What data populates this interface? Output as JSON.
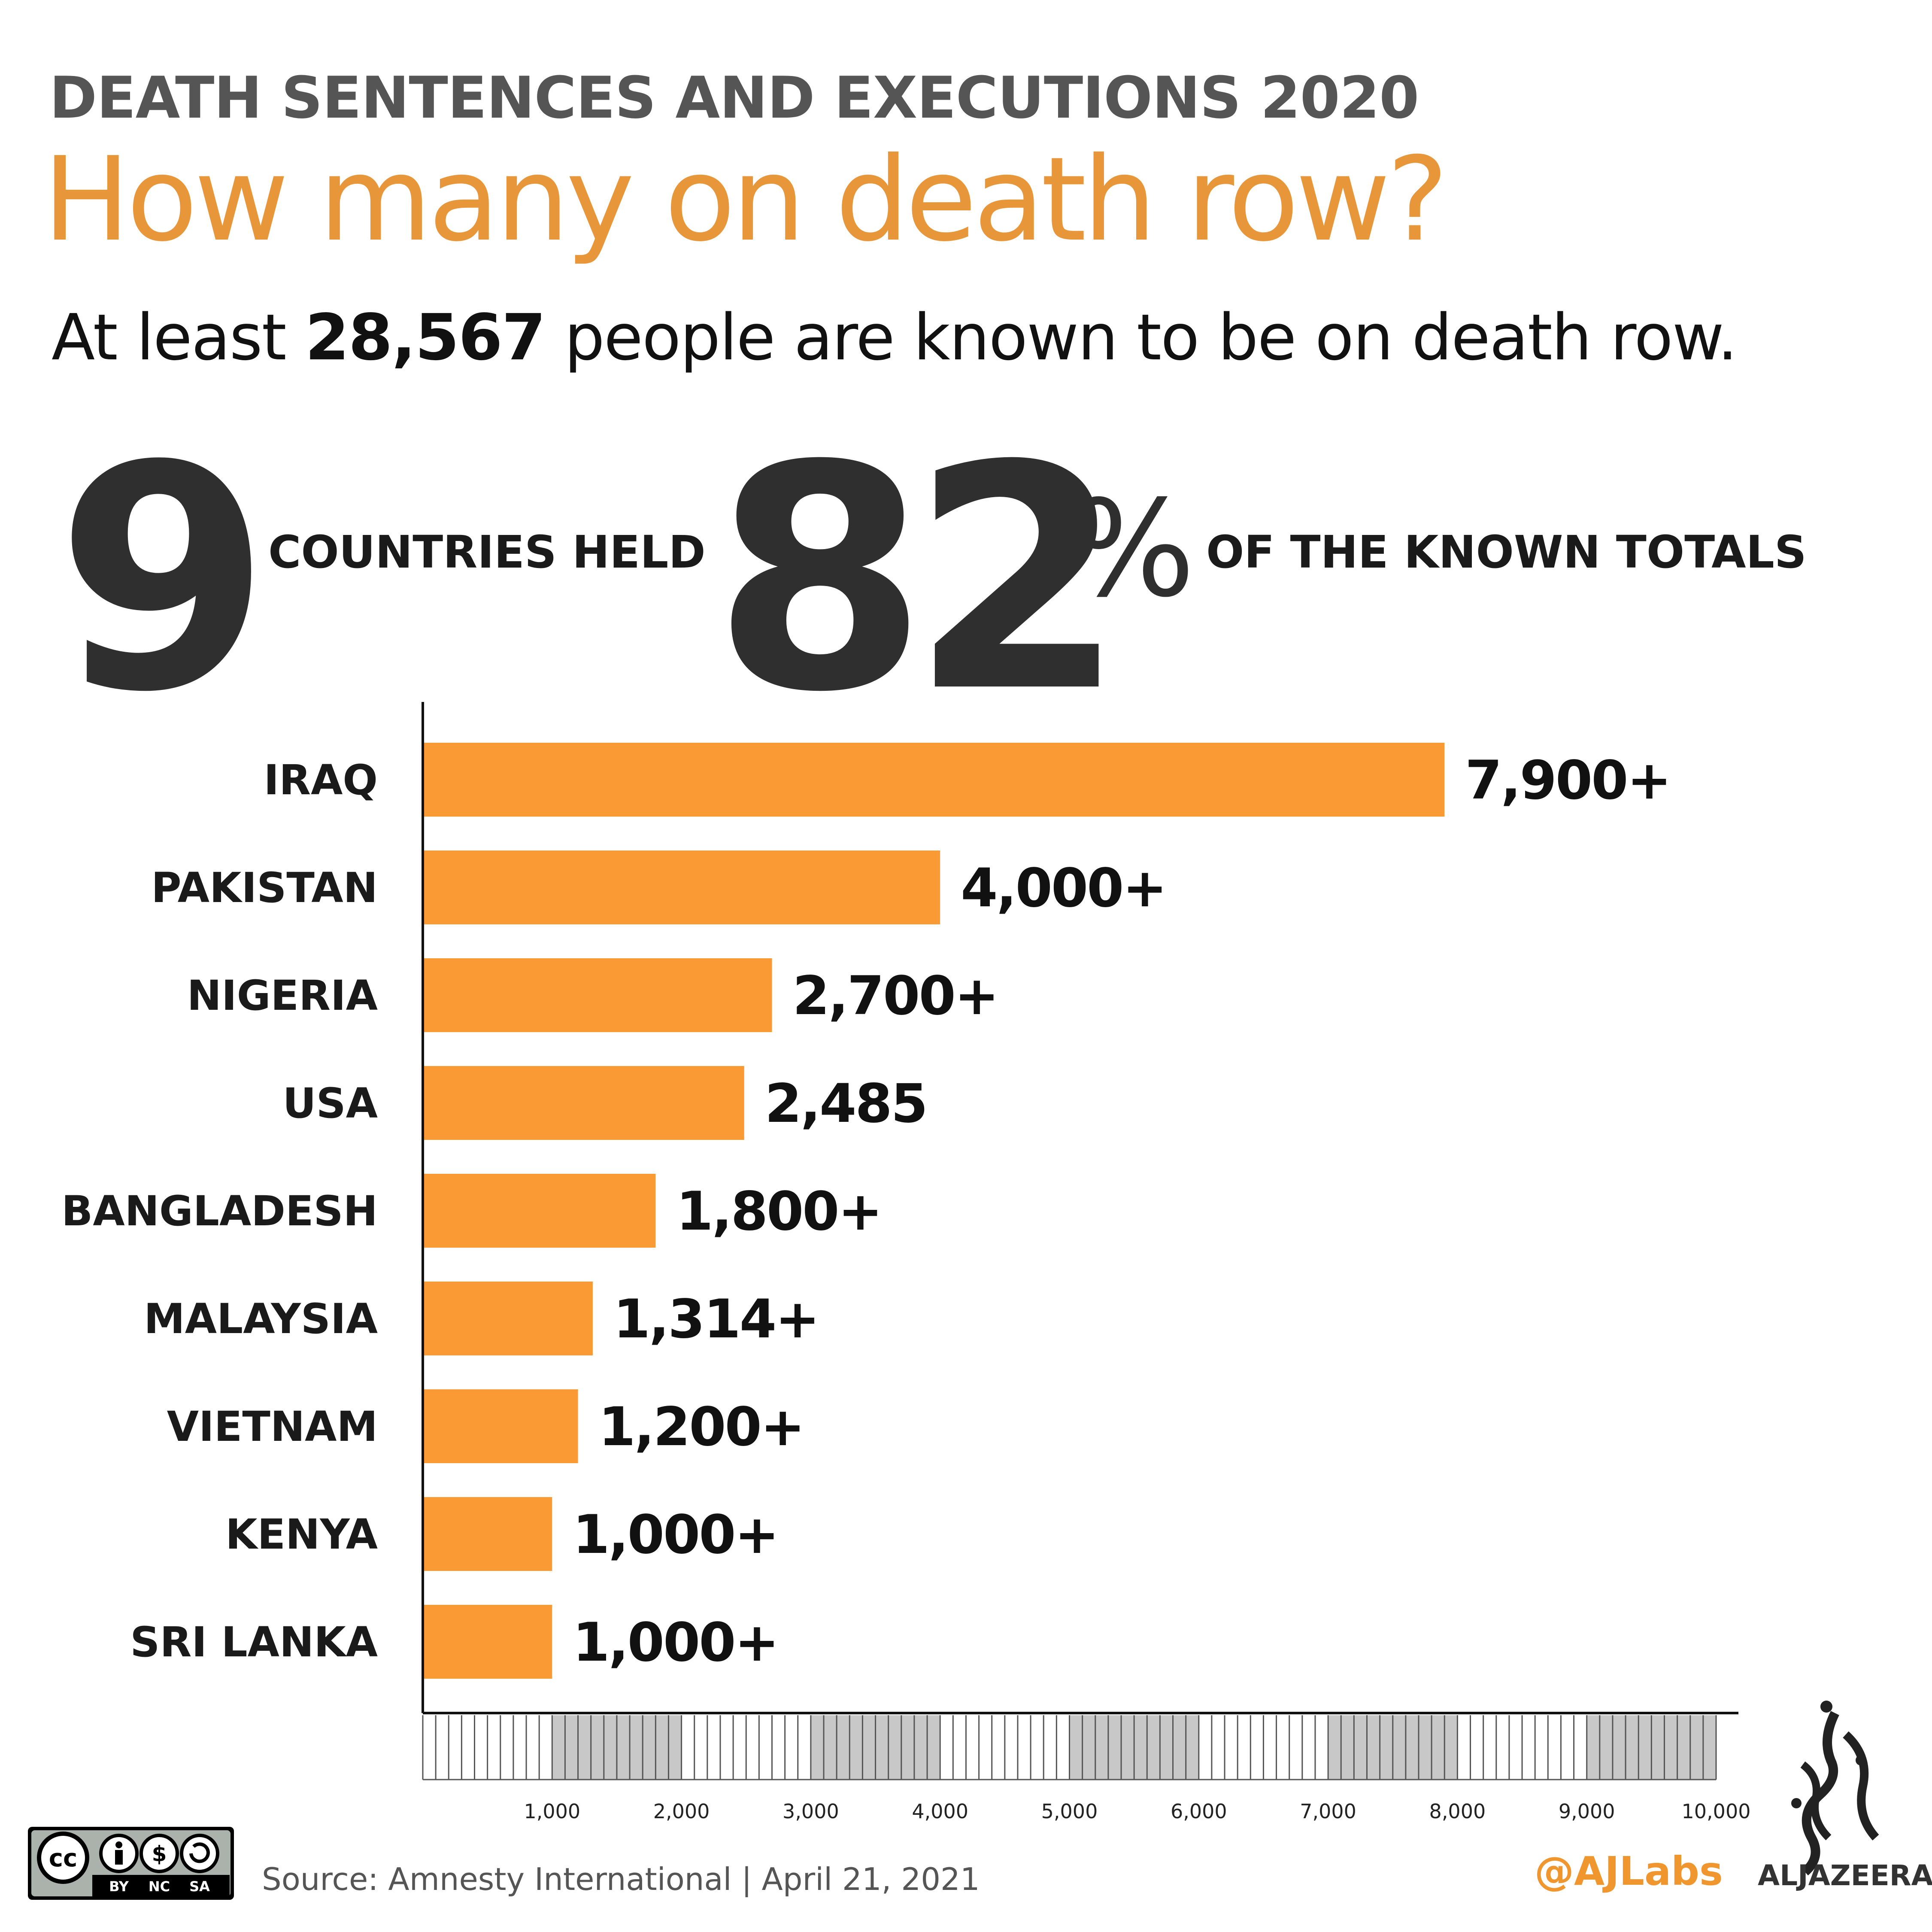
{
  "header": {
    "kicker": "DEATH SENTENCES AND EXECUTIONS 2020",
    "headline": "How many on death row?",
    "subhead_pre": "At least ",
    "subhead_bold": "28,567",
    "subhead_post": " people are known to be on death row."
  },
  "stats": {
    "countries_count": "9",
    "countries_text": "COUNTRIES HELD",
    "percent_value": "82",
    "percent_sign": "%",
    "percent_text": "OF THE KNOWN TOTALS"
  },
  "chart_data": {
    "type": "bar",
    "orientation": "horizontal",
    "categories": [
      "IRAQ",
      "PAKISTAN",
      "NIGERIA",
      "USA",
      "BANGLADESH",
      "MALAYSIA",
      "VIETNAM",
      "KENYA",
      "SRI LANKA"
    ],
    "values": [
      7900,
      4000,
      2700,
      2485,
      1800,
      1314,
      1200,
      1000,
      1000
    ],
    "value_labels": [
      "7,900+",
      "4,000+",
      "2,700+",
      "2,485",
      "1,800+",
      "1,314+",
      "1,200+",
      "1,000+",
      "1,000+"
    ],
    "xlim": [
      0,
      10000
    ],
    "x_ticks": [
      1000,
      2000,
      3000,
      4000,
      5000,
      6000,
      7000,
      8000,
      9000,
      10000
    ],
    "x_tick_labels": [
      "1,000",
      "2,000",
      "3,000",
      "4,000",
      "5,000",
      "6,000",
      "7,000",
      "8,000",
      "9,000",
      "10,000"
    ],
    "bar_color": "#fa9a35",
    "grid": false
  },
  "footer": {
    "license_labels": [
      "BY",
      "NC",
      "SA"
    ],
    "source": "Source: Amnesty International  |  April 21, 2021",
    "handle": "@AJLabs",
    "brand": "ALJAZEERA"
  },
  "colors": {
    "accent": "#e8963a",
    "bar": "#fa9a35",
    "dark": "#2f2f2f"
  }
}
